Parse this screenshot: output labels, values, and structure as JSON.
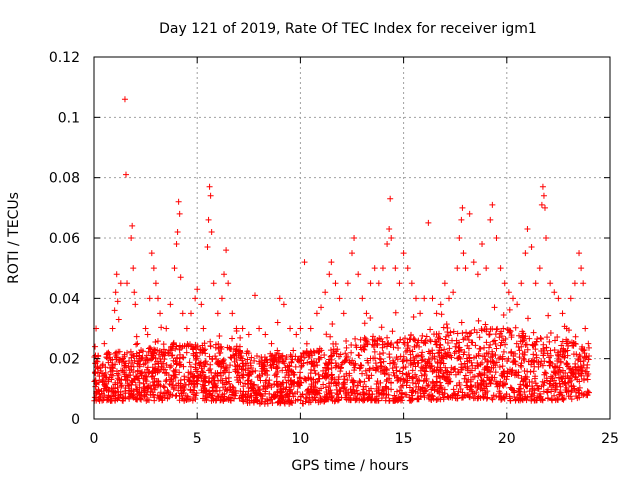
{
  "chart_data": {
    "type": "scatter",
    "title": "Day 121 of 2019, Rate Of TEC Index for receiver igm1",
    "xlabel": "GPS time / hours",
    "ylabel": "ROTI / TECUs",
    "xlim": [
      0,
      25
    ],
    "ylim": [
      0,
      0.12
    ],
    "xticks": [
      0,
      5,
      10,
      15,
      20,
      25
    ],
    "yticks": [
      0,
      0.02,
      0.04,
      0.06,
      0.08,
      0.1,
      0.12
    ],
    "xtick_labels": [
      "0",
      "5",
      "10",
      "15",
      "20",
      "25"
    ],
    "ytick_labels": [
      "0",
      "0.02",
      "0.04",
      "0.06",
      "0.08",
      "0.1",
      "0.12"
    ],
    "grid": true,
    "marker": "+",
    "color": "#ff0000",
    "series": [
      {
        "name": "ROTI",
        "points": [
          [
            0.05,
            0.024
          ],
          [
            0.1,
            0.03
          ],
          [
            0.2,
            0.021
          ],
          [
            0.3,
            0.017
          ],
          [
            0.4,
            0.013
          ],
          [
            0.5,
            0.025
          ],
          [
            0.7,
            0.022
          ],
          [
            0.9,
            0.03
          ],
          [
            1.0,
            0.036
          ],
          [
            1.05,
            0.042
          ],
          [
            1.1,
            0.048
          ],
          [
            1.15,
            0.039
          ],
          [
            1.2,
            0.033
          ],
          [
            1.3,
            0.045
          ],
          [
            1.5,
            0.106
          ],
          [
            1.55,
            0.081
          ],
          [
            1.6,
            0.045
          ],
          [
            1.8,
            0.06
          ],
          [
            1.85,
            0.064
          ],
          [
            1.9,
            0.05
          ],
          [
            1.95,
            0.042
          ],
          [
            2.0,
            0.038
          ],
          [
            2.1,
            0.025
          ],
          [
            2.3,
            0.02
          ],
          [
            2.5,
            0.03
          ],
          [
            2.6,
            0.028
          ],
          [
            2.7,
            0.04
          ],
          [
            2.8,
            0.055
          ],
          [
            2.9,
            0.05
          ],
          [
            3.0,
            0.045
          ],
          [
            3.1,
            0.04
          ],
          [
            3.2,
            0.035
          ],
          [
            3.5,
            0.03
          ],
          [
            3.7,
            0.038
          ],
          [
            3.9,
            0.05
          ],
          [
            4.0,
            0.058
          ],
          [
            4.05,
            0.062
          ],
          [
            4.1,
            0.072
          ],
          [
            4.15,
            0.068
          ],
          [
            4.2,
            0.047
          ],
          [
            4.3,
            0.035
          ],
          [
            4.5,
            0.03
          ],
          [
            4.7,
            0.035
          ],
          [
            4.9,
            0.04
          ],
          [
            5.0,
            0.043
          ],
          [
            5.2,
            0.038
          ],
          [
            5.3,
            0.03
          ],
          [
            5.5,
            0.057
          ],
          [
            5.55,
            0.066
          ],
          [
            5.6,
            0.077
          ],
          [
            5.65,
            0.074
          ],
          [
            5.7,
            0.062
          ],
          [
            5.8,
            0.045
          ],
          [
            6.0,
            0.035
          ],
          [
            6.2,
            0.04
          ],
          [
            6.3,
            0.048
          ],
          [
            6.4,
            0.056
          ],
          [
            6.5,
            0.045
          ],
          [
            6.7,
            0.035
          ],
          [
            6.9,
            0.03
          ],
          [
            7.2,
            0.03
          ],
          [
            7.5,
            0.028
          ],
          [
            7.8,
            0.041
          ],
          [
            8.0,
            0.03
          ],
          [
            8.3,
            0.028
          ],
          [
            8.6,
            0.025
          ],
          [
            8.9,
            0.032
          ],
          [
            9.0,
            0.04
          ],
          [
            9.2,
            0.038
          ],
          [
            9.5,
            0.03
          ],
          [
            9.8,
            0.028
          ],
          [
            10.0,
            0.03
          ],
          [
            10.2,
            0.052
          ],
          [
            10.5,
            0.03
          ],
          [
            10.8,
            0.035
          ],
          [
            11.0,
            0.037
          ],
          [
            11.2,
            0.042
          ],
          [
            11.4,
            0.048
          ],
          [
            11.5,
            0.052
          ],
          [
            11.7,
            0.045
          ],
          [
            11.9,
            0.04
          ],
          [
            12.1,
            0.035
          ],
          [
            12.3,
            0.045
          ],
          [
            12.5,
            0.055
          ],
          [
            12.6,
            0.06
          ],
          [
            12.8,
            0.048
          ],
          [
            13.0,
            0.04
          ],
          [
            13.2,
            0.035
          ],
          [
            13.4,
            0.045
          ],
          [
            13.6,
            0.05
          ],
          [
            13.8,
            0.045
          ],
          [
            14.0,
            0.05
          ],
          [
            14.2,
            0.058
          ],
          [
            14.3,
            0.063
          ],
          [
            14.35,
            0.073
          ],
          [
            14.4,
            0.06
          ],
          [
            14.6,
            0.05
          ],
          [
            14.8,
            0.045
          ],
          [
            15.0,
            0.055
          ],
          [
            15.2,
            0.05
          ],
          [
            15.4,
            0.045
          ],
          [
            15.6,
            0.04
          ],
          [
            15.8,
            0.035
          ],
          [
            16.0,
            0.04
          ],
          [
            16.2,
            0.065
          ],
          [
            16.4,
            0.04
          ],
          [
            16.6,
            0.035
          ],
          [
            16.8,
            0.038
          ],
          [
            17.0,
            0.045
          ],
          [
            17.2,
            0.04
          ],
          [
            17.4,
            0.042
          ],
          [
            17.6,
            0.05
          ],
          [
            17.7,
            0.06
          ],
          [
            17.8,
            0.066
          ],
          [
            17.85,
            0.07
          ],
          [
            17.9,
            0.055
          ],
          [
            18.0,
            0.05
          ],
          [
            18.2,
            0.068
          ],
          [
            18.4,
            0.052
          ],
          [
            18.6,
            0.048
          ],
          [
            18.8,
            0.058
          ],
          [
            19.0,
            0.05
          ],
          [
            19.2,
            0.066
          ],
          [
            19.3,
            0.071
          ],
          [
            19.5,
            0.06
          ],
          [
            19.7,
            0.05
          ],
          [
            19.9,
            0.045
          ],
          [
            20.1,
            0.042
          ],
          [
            20.3,
            0.04
          ],
          [
            20.5,
            0.038
          ],
          [
            20.7,
            0.045
          ],
          [
            20.9,
            0.055
          ],
          [
            21.0,
            0.063
          ],
          [
            21.2,
            0.057
          ],
          [
            21.4,
            0.045
          ],
          [
            21.6,
            0.05
          ],
          [
            21.7,
            0.071
          ],
          [
            21.75,
            0.077
          ],
          [
            21.8,
            0.074
          ],
          [
            21.85,
            0.07
          ],
          [
            21.9,
            0.06
          ],
          [
            22.1,
            0.045
          ],
          [
            22.3,
            0.042
          ],
          [
            22.5,
            0.04
          ],
          [
            22.7,
            0.035
          ],
          [
            22.9,
            0.03
          ],
          [
            23.1,
            0.04
          ],
          [
            23.3,
            0.045
          ],
          [
            23.5,
            0.055
          ],
          [
            23.6,
            0.05
          ],
          [
            23.7,
            0.045
          ],
          [
            23.8,
            0.03
          ],
          [
            23.95,
            0.025
          ]
        ],
        "dense_band": {
          "x_range": [
            0,
            24
          ],
          "envelope_hours": [
            0,
            2,
            4,
            6,
            8,
            10,
            12,
            14,
            16,
            18,
            20,
            22,
            24
          ],
          "lower": [
            0.006,
            0.006,
            0.006,
            0.006,
            0.005,
            0.005,
            0.006,
            0.006,
            0.006,
            0.007,
            0.006,
            0.006,
            0.007
          ],
          "upper": [
            0.022,
            0.023,
            0.026,
            0.025,
            0.022,
            0.022,
            0.026,
            0.028,
            0.028,
            0.03,
            0.03,
            0.028,
            0.025
          ]
        }
      }
    ]
  }
}
